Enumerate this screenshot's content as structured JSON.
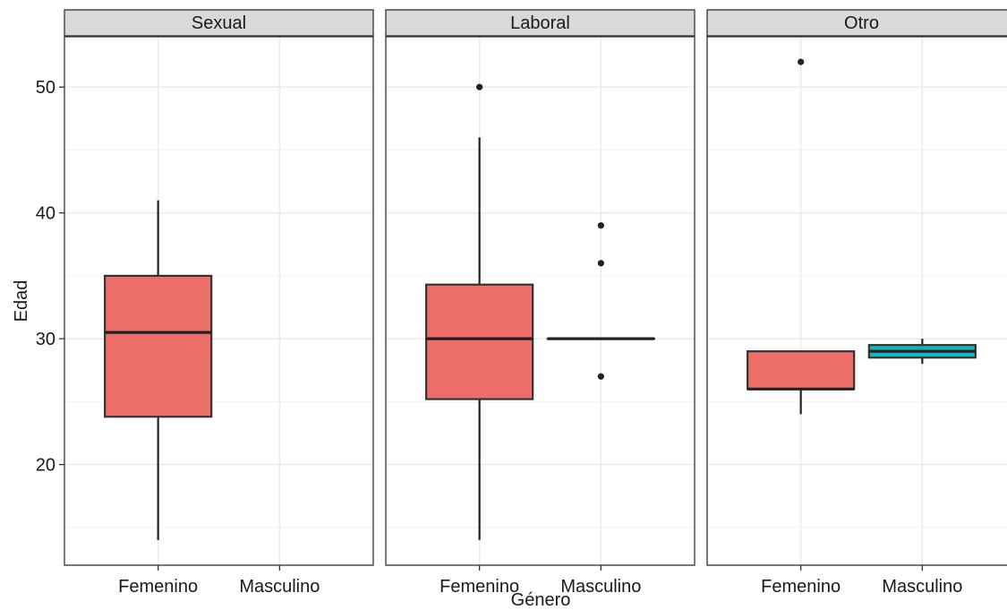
{
  "chart_data": {
    "type": "boxplot",
    "xlabel": "Género",
    "ylabel": "Edad",
    "ylim": [
      12,
      54
    ],
    "yticks": [
      20,
      30,
      40,
      50
    ],
    "categories": [
      "Femenino",
      "Masculino"
    ],
    "colors": {
      "Femenino": "#ee6f69",
      "Masculino": "#18b3b8"
    },
    "panels": [
      {
        "title": "Sexual",
        "boxes": [
          {
            "category": "Femenino",
            "min": 14,
            "q1": 23.8,
            "median": 30.5,
            "q3": 35,
            "max": 41,
            "outliers": []
          }
        ]
      },
      {
        "title": "Laboral",
        "boxes": [
          {
            "category": "Femenino",
            "min": 14,
            "q1": 25.2,
            "median": 30,
            "q3": 34.3,
            "max": 46,
            "outliers": [
              50
            ]
          },
          {
            "category": "Masculino",
            "min": 30,
            "q1": 30,
            "median": 30,
            "q3": 30,
            "max": 30,
            "outliers": [
              27,
              36,
              39
            ]
          }
        ]
      },
      {
        "title": "Otro",
        "boxes": [
          {
            "category": "Femenino",
            "min": 24,
            "q1": 26,
            "median": 26,
            "q3": 29,
            "max": 29,
            "outliers": [
              52
            ]
          },
          {
            "category": "Masculino",
            "min": 28,
            "q1": 28.5,
            "median": 29,
            "q3": 29.5,
            "max": 30,
            "outliers": []
          }
        ]
      }
    ]
  }
}
